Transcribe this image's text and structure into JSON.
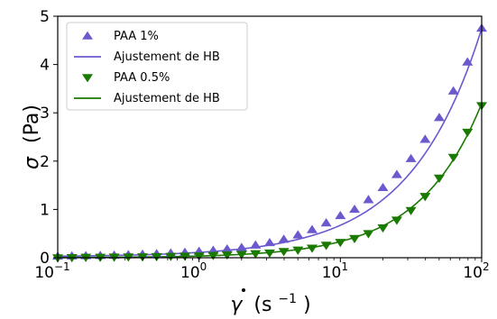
{
  "chart_data": {
    "type": "scatter",
    "x_scale": "log",
    "y_scale": "linear",
    "xlim": [
      0.1,
      100
    ],
    "ylim": [
      0,
      5
    ],
    "x_ticks": [
      {
        "value": 0.1,
        "base": "10",
        "exp": "−1"
      },
      {
        "value": 1,
        "base": "10",
        "exp": "0"
      },
      {
        "value": 10,
        "base": "10",
        "exp": "1"
      },
      {
        "value": 100,
        "base": "10",
        "exp": "2"
      }
    ],
    "y_ticks": [
      0,
      1,
      2,
      3,
      4,
      5
    ],
    "xlabel": {
      "symbol": "γ",
      "unit": "(s",
      "unit_exp": "−1",
      "close": ")"
    },
    "ylabel": {
      "symbol": "σ",
      "unit": "(Pa)"
    },
    "grid": false,
    "legend_position": "top-left",
    "legend": [
      {
        "label": "PAA 1%",
        "kind": "marker",
        "marker": "triangle-up",
        "color": "#6a5acd"
      },
      {
        "label": "Ajustement de HB",
        "kind": "line",
        "color": "#6a5acd"
      },
      {
        "label": "PAA 0.5%",
        "kind": "marker",
        "marker": "triangle-down",
        "color": "#1a7a00"
      },
      {
        "label": "Ajustement de HB",
        "kind": "line",
        "color": "#1a7a00"
      }
    ],
    "series": [
      {
        "name": "PAA 1%",
        "marker": "triangle-up",
        "color": "#6a5acd",
        "x": [
          0.1,
          0.126,
          0.158,
          0.2,
          0.251,
          0.316,
          0.398,
          0.501,
          0.631,
          0.794,
          1.0,
          1.26,
          1.58,
          2.0,
          2.51,
          3.16,
          3.98,
          5.01,
          6.31,
          7.94,
          10.0,
          12.6,
          15.8,
          20.0,
          25.1,
          31.6,
          39.8,
          50.1,
          63.1,
          79.4,
          100.0
        ],
        "y": [
          0.03,
          0.035,
          0.04,
          0.045,
          0.05,
          0.06,
          0.07,
          0.08,
          0.095,
          0.11,
          0.13,
          0.15,
          0.18,
          0.21,
          0.26,
          0.31,
          0.38,
          0.47,
          0.58,
          0.72,
          0.87,
          1.0,
          1.2,
          1.45,
          1.72,
          2.05,
          2.45,
          2.9,
          3.45,
          4.05,
          4.75
        ]
      },
      {
        "name": "Ajustement de HB",
        "kind": "fit",
        "color": "#6a5acd",
        "fit": {
          "tau0": 0.02,
          "K": 0.09,
          "n": 0.86
        }
      },
      {
        "name": "PAA 0.5%",
        "marker": "triangle-down",
        "color": "#1a7a00",
        "x": [
          0.1,
          0.126,
          0.158,
          0.2,
          0.251,
          0.316,
          0.398,
          0.501,
          0.631,
          0.794,
          1.0,
          1.26,
          1.58,
          2.0,
          2.51,
          3.16,
          3.98,
          5.01,
          6.31,
          7.94,
          10.0,
          12.6,
          15.8,
          20.0,
          25.1,
          31.6,
          39.8,
          50.1,
          63.1,
          79.4,
          100.0
        ],
        "y": [
          0.0,
          0.005,
          0.01,
          0.012,
          0.015,
          0.018,
          0.02,
          0.025,
          0.03,
          0.035,
          0.04,
          0.05,
          0.06,
          0.07,
          0.085,
          0.1,
          0.13,
          0.16,
          0.2,
          0.26,
          0.32,
          0.4,
          0.5,
          0.62,
          0.78,
          0.98,
          1.27,
          1.65,
          2.08,
          2.6,
          3.15
        ]
      },
      {
        "name": "Ajustement de HB",
        "kind": "fit",
        "color": "#1a7a00",
        "fit": {
          "tau0": 0.0,
          "K": 0.035,
          "n": 0.98
        }
      }
    ]
  }
}
